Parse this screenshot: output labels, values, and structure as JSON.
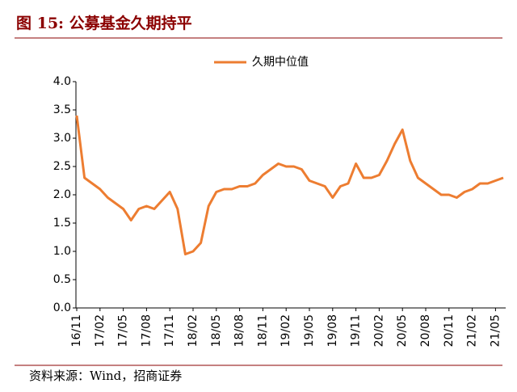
{
  "title": "图 15:  公募基金久期持平",
  "source": "资料来源：Wind，招商证券",
  "chart_data": {
    "type": "line",
    "categories": [
      "16/11",
      null,
      null,
      "17/02",
      null,
      null,
      "17/05",
      null,
      null,
      "17/08",
      null,
      null,
      "17/11",
      null,
      null,
      "18/02",
      null,
      null,
      "18/05",
      null,
      null,
      "18/08",
      null,
      null,
      "18/11",
      null,
      null,
      "19/02",
      null,
      null,
      "19/05",
      null,
      null,
      "19/08",
      null,
      null,
      "19/11",
      null,
      null,
      "20/02",
      null,
      null,
      "20/05",
      null,
      null,
      "20/08",
      null,
      null,
      "20/11",
      null,
      null,
      "21/02",
      null,
      null,
      "21/05",
      null
    ],
    "series": [
      {
        "name": "久期中位值",
        "color": "#ed7d31",
        "values": [
          3.4,
          2.3,
          2.2,
          2.1,
          1.95,
          1.85,
          1.75,
          1.55,
          1.75,
          1.8,
          1.75,
          1.9,
          2.05,
          1.75,
          0.95,
          1.0,
          1.15,
          1.8,
          2.05,
          2.1,
          2.1,
          2.15,
          2.15,
          2.2,
          2.35,
          2.45,
          2.55,
          2.5,
          2.5,
          2.45,
          2.25,
          2.2,
          2.15,
          1.95,
          2.15,
          2.2,
          2.55,
          2.3,
          2.3,
          2.35,
          2.6,
          2.9,
          3.15,
          2.6,
          2.3,
          2.2,
          2.1,
          2.0,
          2.0,
          1.95,
          2.05,
          2.1,
          2.2,
          2.2,
          2.25,
          2.3
        ]
      }
    ],
    "ylim": [
      0,
      4
    ],
    "yticks": [
      {
        "value": 0,
        "label": "0.0"
      },
      0.5,
      {
        "value": 1,
        "label": "1.0"
      },
      1.5,
      {
        "value": 2,
        "label": "2.0"
      },
      2.5,
      {
        "value": 3,
        "label": "3.0"
      },
      3.5,
      {
        "value": 4,
        "label": "4.0"
      }
    ],
    "grid": false
  }
}
